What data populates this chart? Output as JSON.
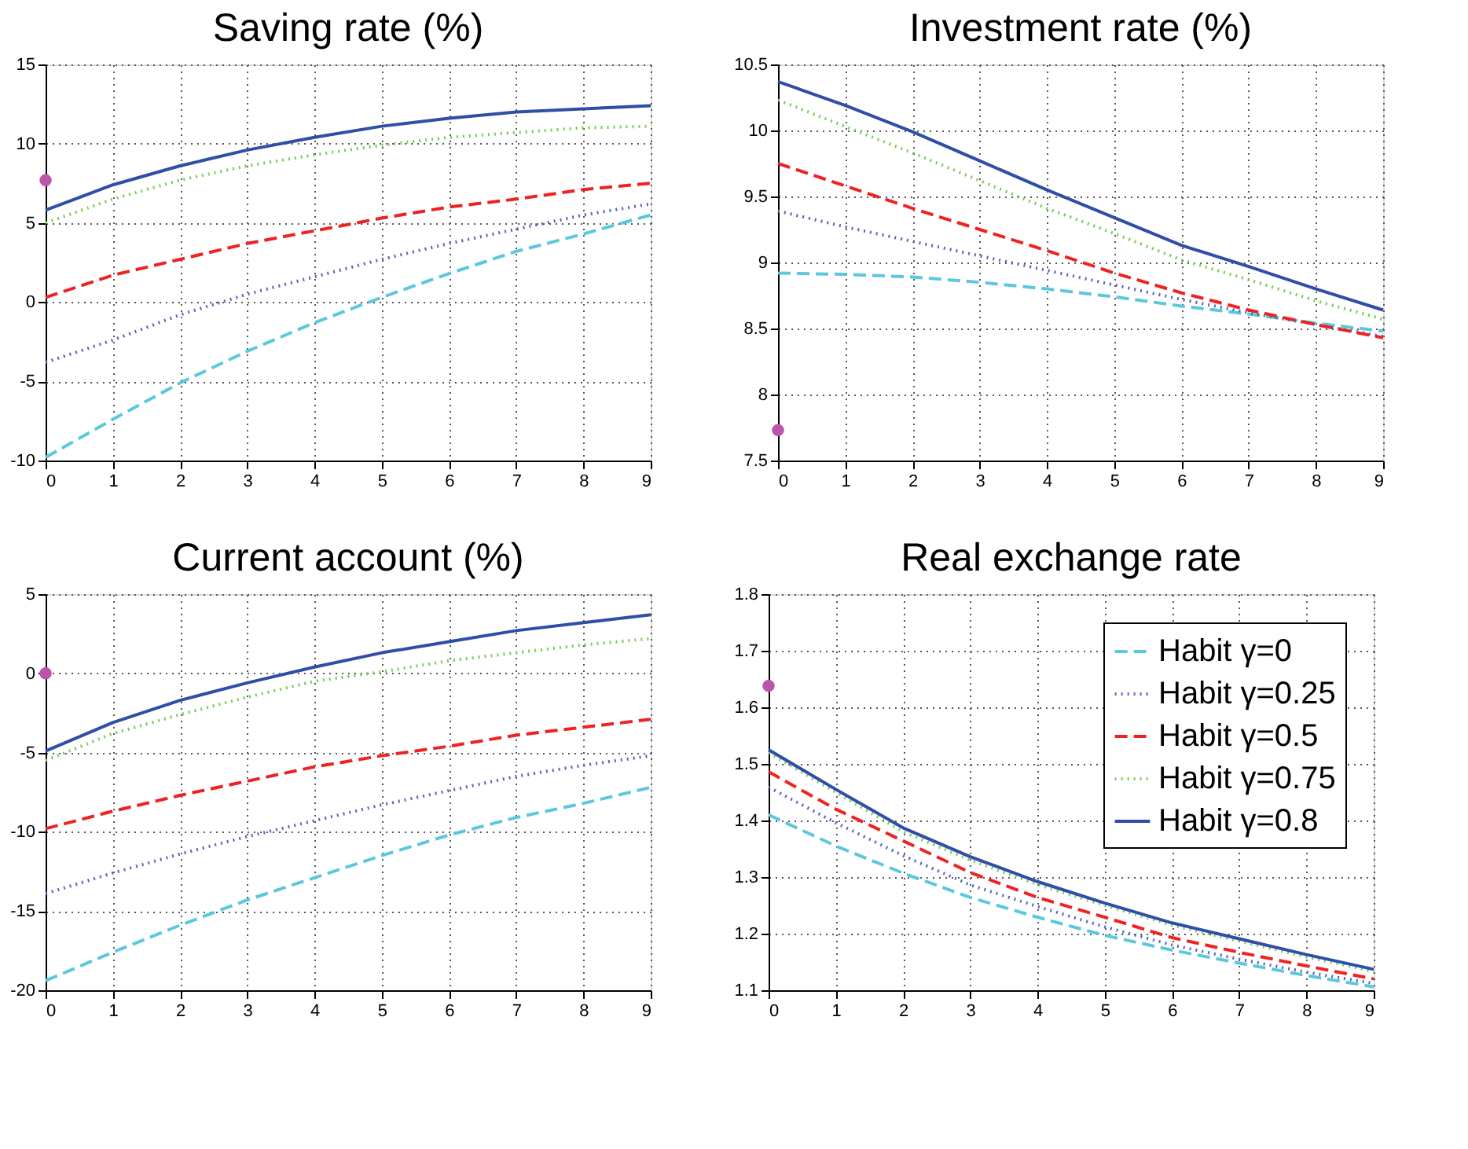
{
  "chart_data": [
    {
      "type": "line",
      "title": "Saving rate (%)",
      "x": [
        0,
        1,
        2,
        3,
        4,
        5,
        6,
        7,
        8,
        9
      ],
      "xlim": [
        0,
        9
      ],
      "xticks": [
        0,
        1,
        2,
        3,
        4,
        5,
        6,
        7,
        8,
        9
      ],
      "ylim": [
        -10,
        15
      ],
      "yticks": [
        -10,
        -5,
        0,
        5,
        10,
        15
      ],
      "grid": true,
      "series": [
        {
          "color": "#5bc8dc",
          "line_style": "dashed",
          "values": [
            -9.8,
            -7.4,
            -5.1,
            -3.1,
            -1.3,
            0.3,
            1.8,
            3.2,
            4.3,
            5.5
          ]
        },
        {
          "color": "#5566bb",
          "line_style": "dotted",
          "values": [
            -3.8,
            -2.4,
            -0.8,
            0.5,
            1.6,
            2.7,
            3.7,
            4.6,
            5.5,
            6.2
          ]
        },
        {
          "color": "#ee2222",
          "line_style": "dashed",
          "values": [
            0.3,
            1.7,
            2.7,
            3.7,
            4.5,
            5.3,
            6.0,
            6.5,
            7.1,
            7.5
          ]
        },
        {
          "color": "#77cc55",
          "line_style": "dotted",
          "values": [
            5.0,
            6.5,
            7.7,
            8.6,
            9.3,
            9.9,
            10.4,
            10.7,
            11.0,
            11.1
          ]
        },
        {
          "color": "#2e4ea8",
          "line_style": "solid",
          "values": [
            5.8,
            7.4,
            8.6,
            9.6,
            10.4,
            11.1,
            11.6,
            12.0,
            12.2,
            12.4
          ]
        },
        {
          "type": "scatter",
          "color": "#bb55aa",
          "marker": "circle",
          "values": [
            7.7,
            null,
            null,
            null,
            null,
            null,
            null,
            null,
            null,
            null
          ]
        }
      ]
    },
    {
      "type": "line",
      "title": "Investment rate (%)",
      "x": [
        0,
        1,
        2,
        3,
        4,
        5,
        6,
        7,
        8,
        9
      ],
      "xlim": [
        0,
        9
      ],
      "xticks": [
        0,
        1,
        2,
        3,
        4,
        5,
        6,
        7,
        8,
        9
      ],
      "ylim": [
        7.5,
        10.5
      ],
      "yticks": [
        7.5,
        8,
        8.5,
        9,
        9.5,
        10,
        10.5
      ],
      "grid": true,
      "series": [
        {
          "color": "#5bc8dc",
          "line_style": "dashed",
          "values": [
            8.92,
            8.91,
            8.89,
            8.85,
            8.8,
            8.74,
            8.67,
            8.61,
            8.54,
            8.48
          ]
        },
        {
          "color": "#5566bb",
          "line_style": "dotted",
          "values": [
            9.39,
            9.27,
            9.16,
            9.05,
            8.94,
            8.83,
            8.72,
            8.62,
            8.53,
            8.44
          ]
        },
        {
          "color": "#ee2222",
          "line_style": "dashed",
          "values": [
            9.75,
            9.58,
            9.41,
            9.25,
            9.09,
            8.92,
            8.77,
            8.64,
            8.53,
            8.43
          ]
        },
        {
          "color": "#77cc55",
          "line_style": "dotted",
          "values": [
            10.23,
            10.03,
            9.83,
            9.62,
            9.41,
            9.22,
            9.02,
            8.87,
            8.71,
            8.57
          ]
        },
        {
          "color": "#2e4ea8",
          "line_style": "solid",
          "values": [
            10.37,
            10.19,
            9.99,
            9.77,
            9.55,
            9.34,
            9.13,
            8.97,
            8.8,
            8.64
          ]
        },
        {
          "type": "scatter",
          "color": "#bb55aa",
          "marker": "circle",
          "values": [
            7.73,
            null,
            null,
            null,
            null,
            null,
            null,
            null,
            null,
            null
          ]
        }
      ]
    },
    {
      "type": "line",
      "title": "Current account (%)",
      "x": [
        0,
        1,
        2,
        3,
        4,
        5,
        6,
        7,
        8,
        9
      ],
      "xlim": [
        0,
        9
      ],
      "xticks": [
        0,
        1,
        2,
        3,
        4,
        5,
        6,
        7,
        8,
        9
      ],
      "ylim": [
        -20,
        5
      ],
      "yticks": [
        -20,
        -15,
        -10,
        -5,
        0,
        5
      ],
      "grid": true,
      "series": [
        {
          "color": "#5bc8dc",
          "line_style": "dashed",
          "values": [
            -19.4,
            -17.6,
            -15.9,
            -14.3,
            -12.9,
            -11.5,
            -10.2,
            -9.1,
            -8.2,
            -7.2
          ]
        },
        {
          "color": "#5566bb",
          "line_style": "dotted",
          "values": [
            -13.9,
            -12.6,
            -11.4,
            -10.3,
            -9.3,
            -8.3,
            -7.4,
            -6.5,
            -5.8,
            -5.2
          ]
        },
        {
          "color": "#ee2222",
          "line_style": "dashed",
          "values": [
            -9.8,
            -8.7,
            -7.7,
            -6.8,
            -5.9,
            -5.2,
            -4.6,
            -3.9,
            -3.4,
            -2.9
          ]
        },
        {
          "color": "#77cc55",
          "line_style": "dotted",
          "values": [
            -5.5,
            -3.8,
            -2.6,
            -1.5,
            -0.5,
            0.1,
            0.8,
            1.3,
            1.8,
            2.2
          ]
        },
        {
          "color": "#2e4ea8",
          "line_style": "solid",
          "values": [
            -4.9,
            -3.1,
            -1.7,
            -0.6,
            0.4,
            1.3,
            2.0,
            2.7,
            3.2,
            3.7
          ]
        },
        {
          "type": "scatter",
          "color": "#bb55aa",
          "marker": "circle",
          "values": [
            0,
            null,
            null,
            null,
            null,
            null,
            null,
            null,
            null,
            null
          ]
        }
      ]
    },
    {
      "type": "line",
      "title": "Real exchange rate",
      "x": [
        0,
        1,
        2,
        3,
        4,
        5,
        6,
        7,
        8,
        9
      ],
      "xlim": [
        0,
        9
      ],
      "xticks": [
        0,
        1,
        2,
        3,
        4,
        5,
        6,
        7,
        8,
        9
      ],
      "ylim": [
        1.1,
        1.8
      ],
      "yticks": [
        1.1,
        1.2,
        1.3,
        1.4,
        1.5,
        1.6,
        1.7,
        1.8
      ],
      "grid": true,
      "legend": "top right",
      "series": [
        {
          "name": "Habit γ=0",
          "color": "#5bc8dc",
          "line_style": "dashed",
          "values": [
            1.41,
            1.355,
            1.307,
            1.264,
            1.229,
            1.197,
            1.171,
            1.148,
            1.126,
            1.106
          ]
        },
        {
          "name": "Habit γ=0.25",
          "color": "#5566bb",
          "line_style": "dotted",
          "values": [
            1.459,
            1.396,
            1.338,
            1.286,
            1.248,
            1.212,
            1.18,
            1.155,
            1.132,
            1.112
          ]
        },
        {
          "name": "Habit γ=0.5",
          "color": "#ee2222",
          "line_style": "dashed",
          "values": [
            1.486,
            1.42,
            1.364,
            1.308,
            1.264,
            1.229,
            1.193,
            1.167,
            1.143,
            1.12
          ]
        },
        {
          "name": "Habit γ=0.75",
          "color": "#77cc55",
          "line_style": "dotted",
          "values": [
            1.52,
            1.45,
            1.38,
            1.33,
            1.287,
            1.25,
            1.215,
            1.187,
            1.159,
            1.133
          ]
        },
        {
          "name": "Habit γ=0.8",
          "color": "#2e4ea8",
          "line_style": "solid",
          "values": [
            1.525,
            1.455,
            1.387,
            1.336,
            1.292,
            1.254,
            1.219,
            1.191,
            1.163,
            1.137
          ]
        },
        {
          "type": "scatter",
          "color": "#bb55aa",
          "marker": "circle",
          "values": [
            1.638,
            null,
            null,
            null,
            null,
            null,
            null,
            null,
            null,
            null
          ]
        }
      ]
    }
  ]
}
